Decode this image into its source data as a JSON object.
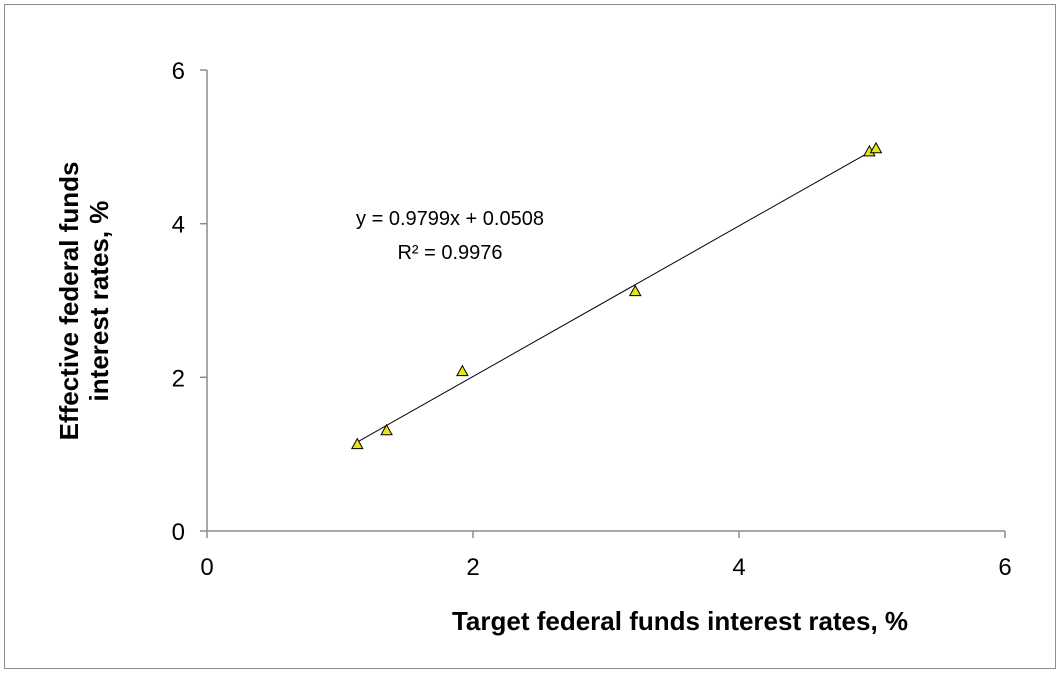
{
  "chart_data": {
    "type": "scatter",
    "xlabel": "Target federal funds interest rates, %",
    "ylabel_lines": [
      "Effective federal funds",
      "interest rates, %"
    ],
    "xlim": [
      0,
      6
    ],
    "ylim": [
      0,
      6
    ],
    "xticks": [
      "0",
      "2",
      "4",
      "6"
    ],
    "yticks": [
      "0",
      "2",
      "4",
      "6"
    ],
    "grid": false,
    "legend": "none",
    "marker": "triangle",
    "marker_color": "#e6e619",
    "points": [
      {
        "x": 1.13,
        "y": 1.13
      },
      {
        "x": 1.35,
        "y": 1.31
      },
      {
        "x": 1.92,
        "y": 2.08
      },
      {
        "x": 3.22,
        "y": 3.12
      },
      {
        "x": 4.98,
        "y": 4.94
      },
      {
        "x": 5.03,
        "y": 4.98
      }
    ],
    "trendline": {
      "type": "linear",
      "slope": 0.9799,
      "intercept": 0.0508,
      "x_start": 1.13,
      "x_end": 5.03
    },
    "annotations": {
      "equation": "y = 0.9799x + 0.0508",
      "r_squared": "R² = 0.9976"
    }
  }
}
